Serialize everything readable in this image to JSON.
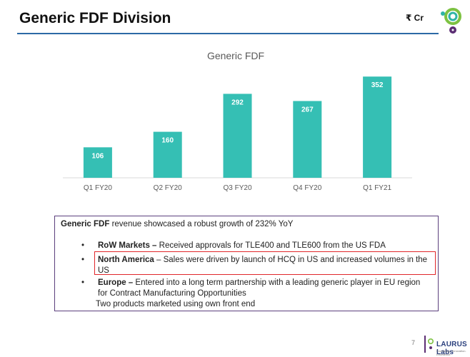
{
  "header": {
    "title": "Generic FDF Division",
    "unit": "₹ Cr"
  },
  "chart_data": {
    "type": "bar",
    "title": "Generic FDF",
    "categories": [
      "Q1 FY20",
      "Q2 FY20",
      "Q3 FY20",
      "Q4 FY20",
      "Q1 FY21"
    ],
    "values": [
      106,
      160,
      292,
      267,
      352
    ],
    "ylim": [
      0,
      370
    ],
    "grid": false,
    "bar_color": "#35bfb4"
  },
  "summary": {
    "lead_bold": "Generic FDF",
    "lead_text": " revenue showcased a robust growth of 232% YoY",
    "bullets": [
      {
        "dot": "•",
        "bold": "RoW Markets –",
        "line1": " Received approvals for TLE400 and TLE600 from the US FDA",
        "line2": ""
      },
      {
        "dot": "•",
        "bold": "North America",
        "line1": " – Sales were driven by launch of HCQ in US and increased volumes in the",
        "line2": "US"
      },
      {
        "dot": "•",
        "bold": "Europe –",
        "line1": " Entered into a long term partnership with a leading generic player in EU region",
        "line2": "for  Contract Manufacturing Opportunities"
      }
    ],
    "extra_line": "Two products marketed using own front end"
  },
  "footer": {
    "page_number": "7",
    "brand": "LAURUS Labs",
    "tagline": "Knowledge. Innovation. Excellence."
  },
  "colors": {
    "accent_rule": "#2c6aa6",
    "box_border": "#5b3f7d",
    "highlight": "#e0262a"
  }
}
